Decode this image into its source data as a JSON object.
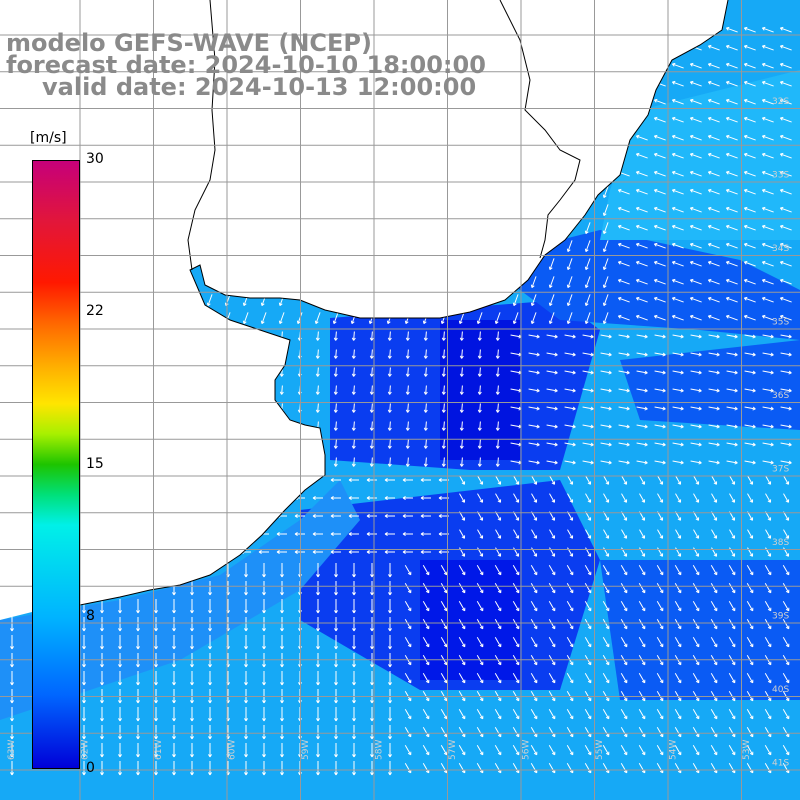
{
  "title": {
    "line1": "modelo GEFS-WAVE (NCEP)",
    "line2": "forecast date: 2024-10-10 18:00:00",
    "line3": "valid date: 2024-10-13 12:00:00"
  },
  "colorbar": {
    "unit": "[m/s]",
    "ticks": [
      "30",
      "22",
      "15",
      "8",
      "0"
    ],
    "tick_values": [
      30,
      22,
      15,
      8,
      0
    ],
    "range": [
      0,
      30
    ],
    "colors": [
      "#0000d8",
      "#0066ff",
      "#00b4ff",
      "#00f0e8",
      "#00e07a",
      "#1dc400",
      "#a7f000",
      "#ffe500",
      "#ffb000",
      "#ff6a00",
      "#ff1800",
      "#e2163a",
      "#c6007a"
    ]
  },
  "map": {
    "field": "wind speed and direction",
    "land_color": "#ffffff",
    "grid_color": "#999999",
    "coast_color": "#000000",
    "arrow_color": "#ffffff",
    "lat_labels": [
      "32S",
      "33S",
      "34S",
      "35S",
      "36S",
      "37S",
      "38S",
      "39S",
      "40S",
      "41S"
    ],
    "lon_labels": [
      "63W",
      "62W",
      "61W",
      "60W",
      "59W",
      "58W",
      "57W",
      "56W",
      "55W",
      "54W",
      "53W"
    ]
  }
}
